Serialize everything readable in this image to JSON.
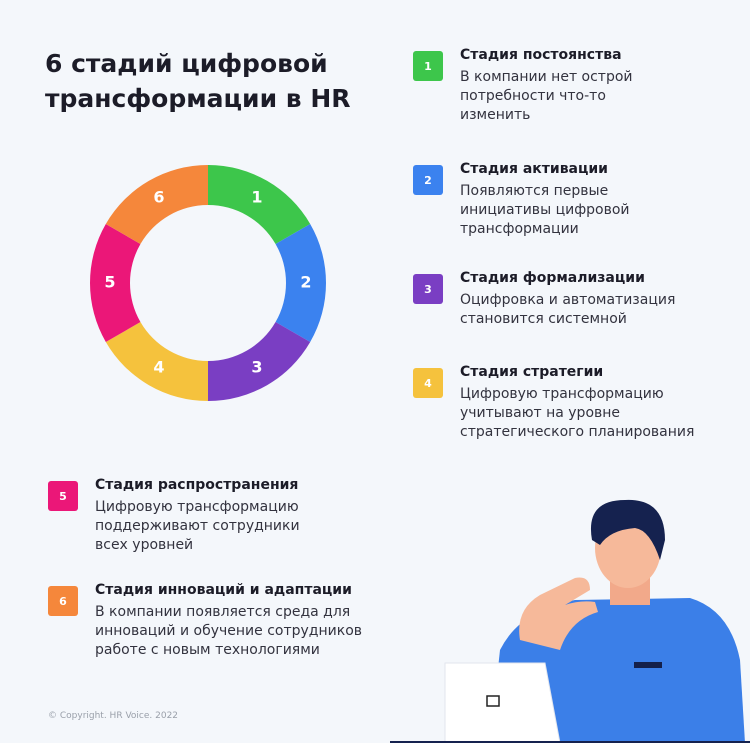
{
  "header": {
    "title_lines": [
      "6 стадий цифровой",
      "трансформации в HR"
    ]
  },
  "stages": [
    {
      "number": "1",
      "color": "#3dc64b",
      "title": "Стадия постоянства",
      "description_lines": [
        "В компании нет острой",
        "потребности что-то",
        "изменить"
      ]
    },
    {
      "number": "2",
      "color": "#3b82ef",
      "title": "Стадия активации",
      "description_lines": [
        "Появляются первые",
        "инициативы цифровой",
        "трансформации"
      ]
    },
    {
      "number": "3",
      "color": "#7a3ec3",
      "title": "Стадия формализации",
      "description_lines": [
        "Оцифровка и автоматизация",
        "становится системной"
      ]
    },
    {
      "number": "4",
      "color": "#f5c23d",
      "title": "Стадия стратегии",
      "description_lines": [
        "Цифровую трансформацию",
        "учитывают на уровне",
        "стратегического планирования"
      ]
    },
    {
      "number": "5",
      "color": "#eb1778",
      "title": "Стадия распространения",
      "description_lines": [
        "Цифровую трансформацию",
        "поддерживают сотрудники",
        "всех уровней"
      ]
    },
    {
      "number": "6",
      "color": "#f5873b",
      "title": "Стадия инноваций и адаптации",
      "description_lines": [
        "В компании появляется среда для",
        "инноваций и обучение сотрудников",
        "работе с новым технологиями"
      ]
    }
  ],
  "footer": {
    "copyright": "© Copyright. HR Voice. 2022"
  }
}
